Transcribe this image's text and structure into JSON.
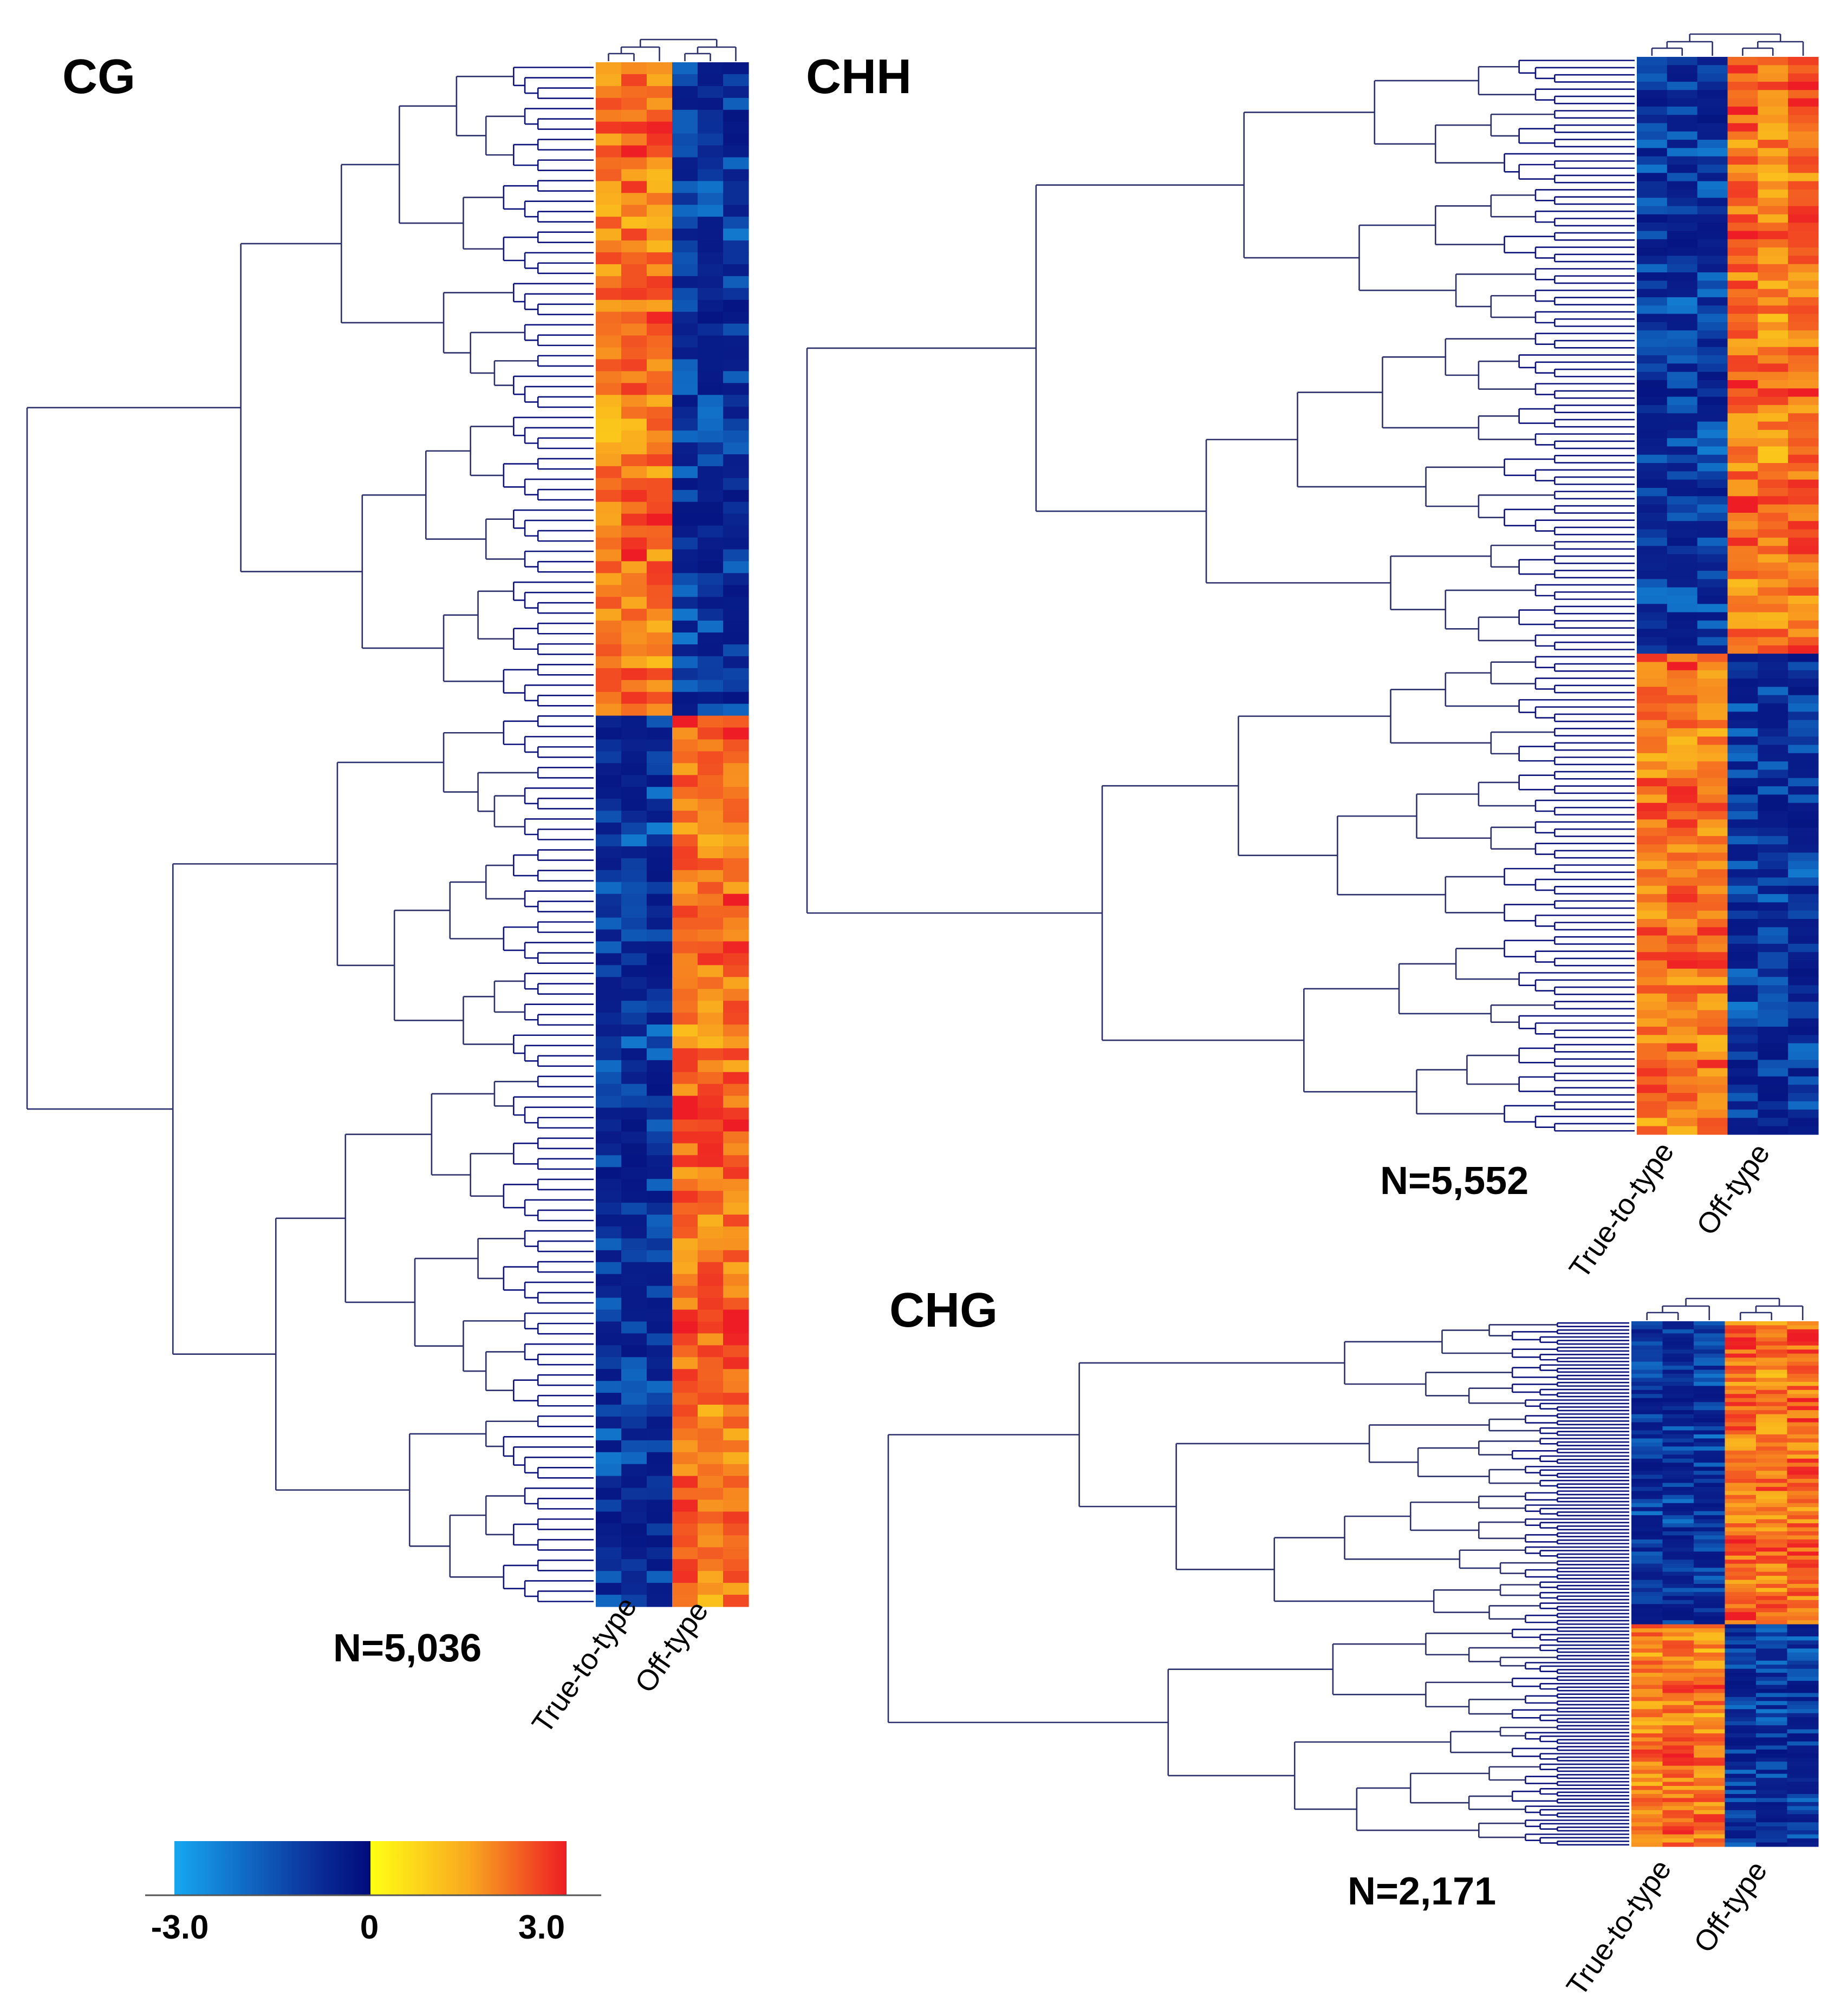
{
  "figure": {
    "legend": {
      "scale_min": -3.0,
      "scale_mid": 0,
      "scale_max": 3.0,
      "tick_labels": [
        "-3.0",
        "0",
        "3.0"
      ],
      "gradient_negative": [
        "#16a7f0",
        "#0a1f8c",
        "#000c7a"
      ],
      "gradient_positive": [
        "#ffff14",
        "#f9a81f",
        "#ee1c24"
      ]
    }
  },
  "chart_data": [
    {
      "type": "heatmap",
      "title": "CG",
      "n_label": "N=5,036",
      "column_groups": [
        "True-to-type",
        "Off-type"
      ],
      "value_range": [
        -3.0,
        3.0
      ],
      "clusters": [
        {
          "rows_fraction": 0.42,
          "true_to_type": "high",
          "off_type": "low"
        },
        {
          "rows_fraction": 0.58,
          "true_to_type": "low",
          "off_type": "high"
        }
      ]
    },
    {
      "type": "heatmap",
      "title": "CHH",
      "n_label": "N=5,552",
      "column_groups": [
        "True-to-type",
        "Off-type"
      ],
      "value_range": [
        -3.0,
        3.0
      ],
      "clusters": [
        {
          "rows_fraction": 0.55,
          "true_to_type": "low",
          "off_type": "high"
        },
        {
          "rows_fraction": 0.45,
          "true_to_type": "high",
          "off_type": "low"
        }
      ]
    },
    {
      "type": "heatmap",
      "title": "CHG",
      "n_label": "N=2,171",
      "column_groups": [
        "True-to-type",
        "Off-type"
      ],
      "value_range": [
        -3.0,
        3.0
      ],
      "clusters": [
        {
          "rows_fraction": 0.58,
          "true_to_type": "low",
          "off_type": "high"
        },
        {
          "rows_fraction": 0.42,
          "true_to_type": "high",
          "off_type": "low"
        }
      ]
    }
  ]
}
